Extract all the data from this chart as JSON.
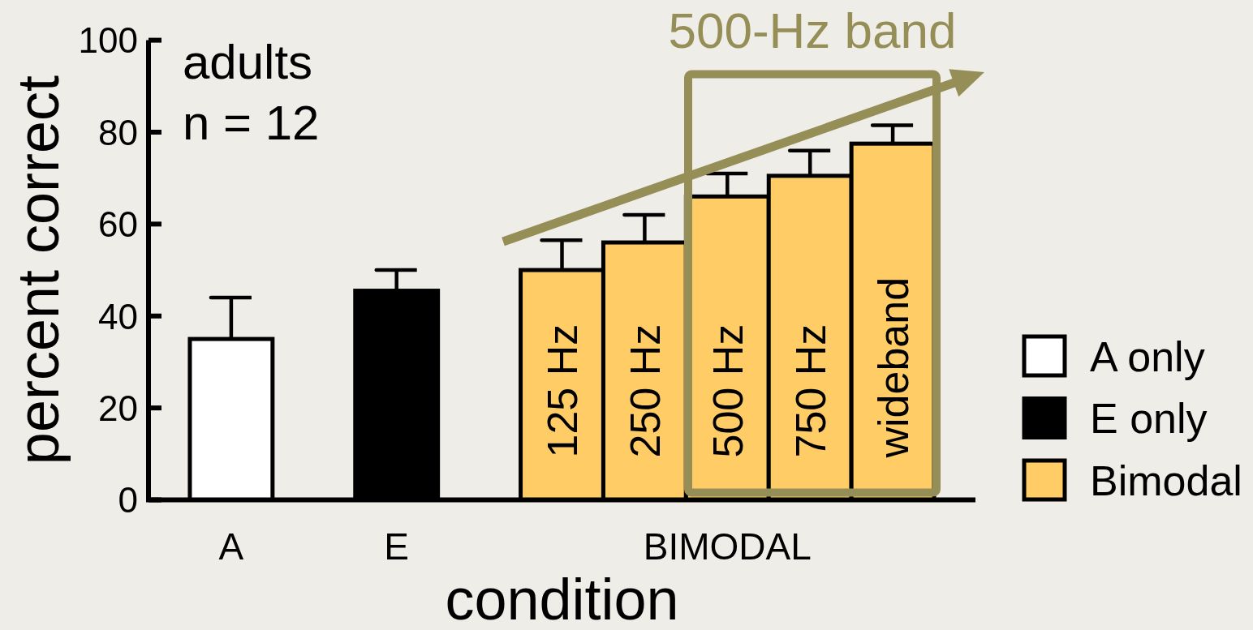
{
  "chart_data": {
    "type": "bar",
    "xlabel": "condition",
    "ylabel": "percent correct",
    "categories": [
      "A",
      null,
      "E",
      null,
      null,
      null,
      "BIMODAL",
      null,
      null
    ],
    "series": [
      {
        "name": "A only",
        "color": "#ffffff",
        "values": [
          35,
          null,
          null,
          null,
          null,
          null,
          null,
          null,
          null
        ],
        "errors": [
          [
            35,
            44
          ],
          null,
          null,
          null,
          null,
          null,
          null,
          null,
          null
        ]
      },
      {
        "name": "E only",
        "color": "#000000",
        "values": [
          null,
          null,
          45.5,
          null,
          null,
          null,
          null,
          null,
          null
        ],
        "errors": [
          null,
          null,
          [
            45.5,
            50
          ],
          null,
          null,
          null,
          null,
          null,
          null
        ]
      },
      {
        "name": "Bimodal",
        "color": "#ffcc66",
        "values": [
          null,
          null,
          null,
          null,
          50,
          56,
          66,
          70.5,
          77.5
        ],
        "errors": [
          null,
          null,
          null,
          null,
          [
            50,
            56.5
          ],
          [
            56,
            62
          ],
          [
            66,
            71
          ],
          [
            70.5,
            76
          ],
          [
            77.5,
            81.5
          ]
        ]
      }
    ],
    "ylim": [
      0,
      100
    ],
    "yticks": [
      0,
      20,
      40,
      60,
      80,
      100
    ],
    "annotations": [
      "adults",
      "n = 12",
      "500-Hz band",
      "125 Hz",
      "250 Hz",
      "500 Hz",
      "750 Hz",
      "wideband"
    ],
    "legend": "bottom right"
  }
}
